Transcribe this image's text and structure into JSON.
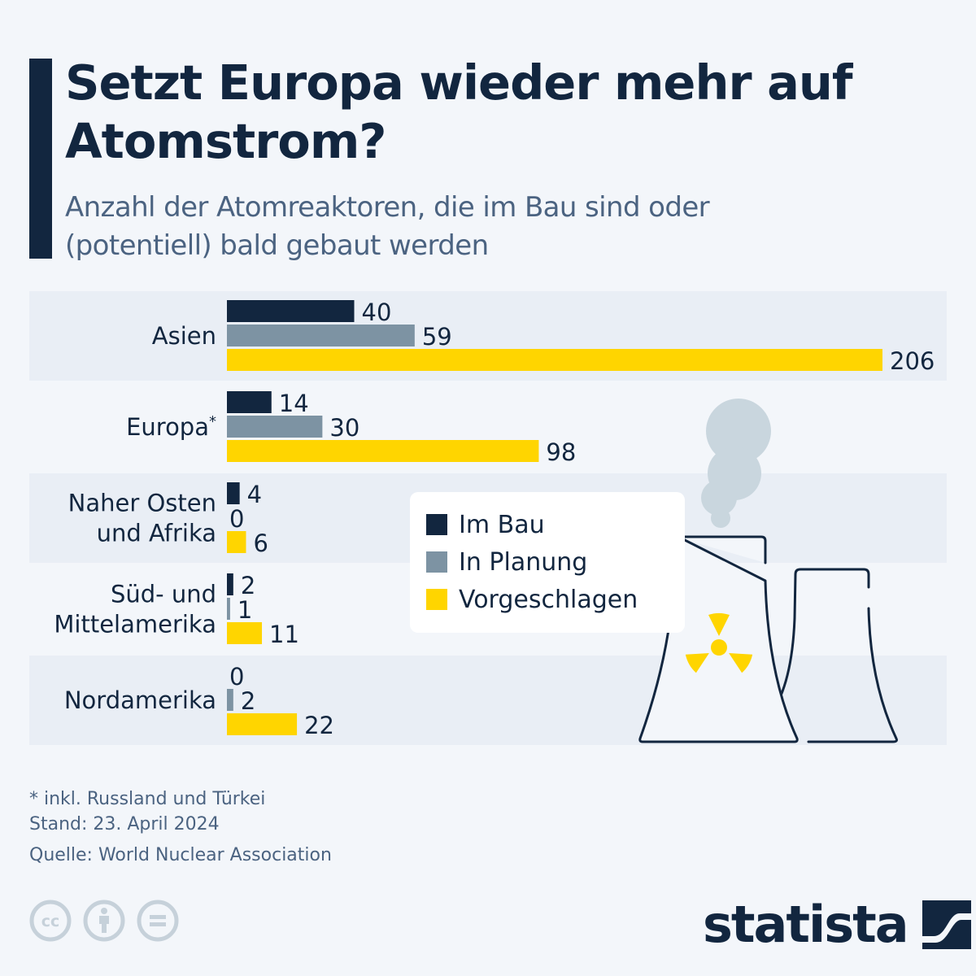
{
  "header": {
    "title": "Setzt Europa wieder mehr auf Atomstrom?",
    "subtitle": "Anzahl der Atomreaktoren, die im Bau sind oder (potentiell) bald gebaut werden"
  },
  "chart_data": {
    "type": "bar",
    "orientation": "horizontal",
    "title": "Setzt Europa wieder mehr auf Atomstrom?",
    "subtitle": "Anzahl der Atomreaktoren, die im Bau sind oder (potentiell) bald gebaut werden",
    "categories": [
      "Asien",
      "Europa*",
      "Naher Osten und Afrika",
      "Süd- und Mittelamerika",
      "Nordamerika"
    ],
    "category_lines": [
      [
        "Asien"
      ],
      [
        "Europa*"
      ],
      [
        "Naher Osten",
        "und Afrika"
      ],
      [
        "Süd- und",
        "Mittelamerika"
      ],
      [
        "Nordamerika"
      ]
    ],
    "series": [
      {
        "name": "Im Bau",
        "color": "#12263f",
        "values": [
          40,
          14,
          4,
          2,
          0
        ]
      },
      {
        "name": "In Planung",
        "color": "#7d93a3",
        "values": [
          59,
          30,
          0,
          1,
          2
        ]
      },
      {
        "name": "Vorgeschlagen",
        "color": "#ffd500",
        "values": [
          206,
          98,
          6,
          11,
          22
        ]
      }
    ],
    "xlabel": "",
    "ylabel": "",
    "xlim": [
      0,
      206
    ],
    "grid": false,
    "data_labels": true,
    "legend_position": "center-right"
  },
  "legend": {
    "items": [
      {
        "label": "Im Bau",
        "color": "#12263f"
      },
      {
        "label": "In Planung",
        "color": "#7d93a3"
      },
      {
        "label": "Vorgeschlagen",
        "color": "#ffd500"
      }
    ]
  },
  "footer": {
    "note": "* inkl. Russland und Türkei",
    "date": "Stand: 23. April 2024",
    "source": "Quelle: World Nuclear Association",
    "brand": "statista"
  },
  "colors": {
    "primary": "#12263f",
    "secondary": "#7d93a3",
    "accent": "#ffd500",
    "background": "#f3f6fa",
    "band": "#e9eef5",
    "smoke": "#c9d6de",
    "icon_gray": "#c6d1da"
  }
}
